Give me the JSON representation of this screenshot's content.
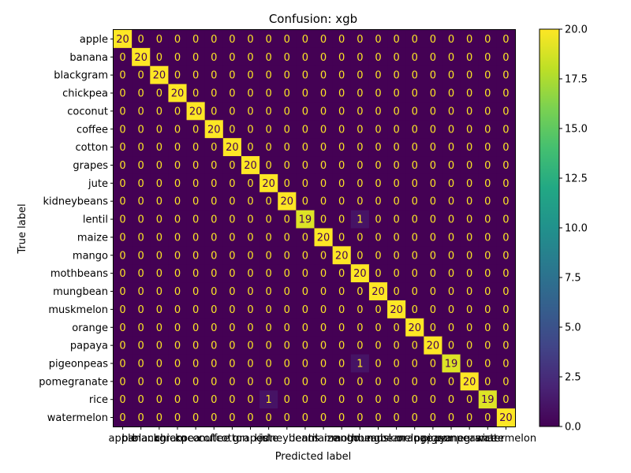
{
  "chart_data": {
    "type": "heatmap",
    "title": "Confusion: xgb",
    "xlabel": "Predicted label",
    "ylabel": "True label",
    "labels": [
      "apple",
      "banana",
      "blackgram",
      "chickpea",
      "coconut",
      "coffee",
      "cotton",
      "grapes",
      "jute",
      "kidneybeans",
      "lentil",
      "maize",
      "mango",
      "mothbeans",
      "mungbean",
      "muskmelon",
      "orange",
      "papaya",
      "pigeonpeas",
      "pomegranate",
      "rice",
      "watermelon"
    ],
    "matrix": [
      [
        20,
        0,
        0,
        0,
        0,
        0,
        0,
        0,
        0,
        0,
        0,
        0,
        0,
        0,
        0,
        0,
        0,
        0,
        0,
        0,
        0,
        0
      ],
      [
        0,
        20,
        0,
        0,
        0,
        0,
        0,
        0,
        0,
        0,
        0,
        0,
        0,
        0,
        0,
        0,
        0,
        0,
        0,
        0,
        0,
        0
      ],
      [
        0,
        0,
        20,
        0,
        0,
        0,
        0,
        0,
        0,
        0,
        0,
        0,
        0,
        0,
        0,
        0,
        0,
        0,
        0,
        0,
        0,
        0
      ],
      [
        0,
        0,
        0,
        20,
        0,
        0,
        0,
        0,
        0,
        0,
        0,
        0,
        0,
        0,
        0,
        0,
        0,
        0,
        0,
        0,
        0,
        0
      ],
      [
        0,
        0,
        0,
        0,
        20,
        0,
        0,
        0,
        0,
        0,
        0,
        0,
        0,
        0,
        0,
        0,
        0,
        0,
        0,
        0,
        0,
        0
      ],
      [
        0,
        0,
        0,
        0,
        0,
        20,
        0,
        0,
        0,
        0,
        0,
        0,
        0,
        0,
        0,
        0,
        0,
        0,
        0,
        0,
        0,
        0
      ],
      [
        0,
        0,
        0,
        0,
        0,
        0,
        20,
        0,
        0,
        0,
        0,
        0,
        0,
        0,
        0,
        0,
        0,
        0,
        0,
        0,
        0,
        0
      ],
      [
        0,
        0,
        0,
        0,
        0,
        0,
        0,
        20,
        0,
        0,
        0,
        0,
        0,
        0,
        0,
        0,
        0,
        0,
        0,
        0,
        0,
        0
      ],
      [
        0,
        0,
        0,
        0,
        0,
        0,
        0,
        0,
        20,
        0,
        0,
        0,
        0,
        0,
        0,
        0,
        0,
        0,
        0,
        0,
        0,
        0
      ],
      [
        0,
        0,
        0,
        0,
        0,
        0,
        0,
        0,
        0,
        20,
        0,
        0,
        0,
        0,
        0,
        0,
        0,
        0,
        0,
        0,
        0,
        0
      ],
      [
        0,
        0,
        0,
        0,
        0,
        0,
        0,
        0,
        0,
        0,
        19,
        0,
        0,
        1,
        0,
        0,
        0,
        0,
        0,
        0,
        0,
        0
      ],
      [
        0,
        0,
        0,
        0,
        0,
        0,
        0,
        0,
        0,
        0,
        0,
        20,
        0,
        0,
        0,
        0,
        0,
        0,
        0,
        0,
        0,
        0
      ],
      [
        0,
        0,
        0,
        0,
        0,
        0,
        0,
        0,
        0,
        0,
        0,
        0,
        20,
        0,
        0,
        0,
        0,
        0,
        0,
        0,
        0,
        0
      ],
      [
        0,
        0,
        0,
        0,
        0,
        0,
        0,
        0,
        0,
        0,
        0,
        0,
        0,
        20,
        0,
        0,
        0,
        0,
        0,
        0,
        0,
        0
      ],
      [
        0,
        0,
        0,
        0,
        0,
        0,
        0,
        0,
        0,
        0,
        0,
        0,
        0,
        0,
        20,
        0,
        0,
        0,
        0,
        0,
        0,
        0
      ],
      [
        0,
        0,
        0,
        0,
        0,
        0,
        0,
        0,
        0,
        0,
        0,
        0,
        0,
        0,
        0,
        20,
        0,
        0,
        0,
        0,
        0,
        0
      ],
      [
        0,
        0,
        0,
        0,
        0,
        0,
        0,
        0,
        0,
        0,
        0,
        0,
        0,
        0,
        0,
        0,
        20,
        0,
        0,
        0,
        0,
        0
      ],
      [
        0,
        0,
        0,
        0,
        0,
        0,
        0,
        0,
        0,
        0,
        0,
        0,
        0,
        0,
        0,
        0,
        0,
        20,
        0,
        0,
        0,
        0
      ],
      [
        0,
        0,
        0,
        0,
        0,
        0,
        0,
        0,
        0,
        0,
        0,
        0,
        0,
        1,
        0,
        0,
        0,
        0,
        19,
        0,
        0,
        0
      ],
      [
        0,
        0,
        0,
        0,
        0,
        0,
        0,
        0,
        0,
        0,
        0,
        0,
        0,
        0,
        0,
        0,
        0,
        0,
        0,
        20,
        0,
        0
      ],
      [
        0,
        0,
        0,
        0,
        0,
        0,
        0,
        0,
        1,
        0,
        0,
        0,
        0,
        0,
        0,
        0,
        0,
        0,
        0,
        0,
        19,
        0
      ],
      [
        0,
        0,
        0,
        0,
        0,
        0,
        0,
        0,
        0,
        0,
        0,
        0,
        0,
        0,
        0,
        0,
        0,
        0,
        0,
        0,
        0,
        20
      ]
    ],
    "colorscale": "viridis",
    "value_range": [
      0,
      20
    ],
    "colorbar_ticks": [
      "0.0",
      "2.5",
      "5.0",
      "7.5",
      "10.0",
      "12.5",
      "15.0",
      "17.5",
      "20.0"
    ],
    "grid": false,
    "legend": "colorbar-right"
  }
}
